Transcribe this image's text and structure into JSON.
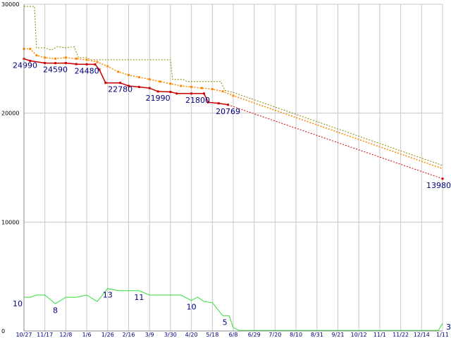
{
  "chart_data": {
    "type": "line",
    "ylim": [
      0,
      30000
    ],
    "yticks": [
      {
        "value": 0,
        "label": "0"
      },
      {
        "value": 10000,
        "label": "10000"
      },
      {
        "value": 20000,
        "label": "20000"
      },
      {
        "value": 30000,
        "label": "30000"
      }
    ],
    "grid": true,
    "xticks": [
      "10/27",
      "11/17",
      "12/8",
      "1/6",
      "1/26",
      "2/16",
      "3/9",
      "3/30",
      "4/20",
      "5/18",
      "6/8",
      "6/29",
      "7/20",
      "8/10",
      "8/31",
      "9/21",
      "10/12",
      "11/1",
      "11/22",
      "12/14",
      "1/11"
    ],
    "colors": {
      "price": "#cc0000",
      "avg": "#ff8800",
      "high": "#888800",
      "count": "#33dd33",
      "label": "#000080",
      "grid": "#c8c8c8"
    },
    "series": [
      {
        "key": "high",
        "style": "step-dotted",
        "points": [
          [
            0,
            29800
          ],
          [
            0.5,
            29800
          ],
          [
            0.6,
            26000
          ],
          [
            1,
            26000
          ],
          [
            1.3,
            25800
          ],
          [
            1.6,
            26100
          ],
          [
            2,
            26000
          ],
          [
            2.4,
            26100
          ],
          [
            2.6,
            25100
          ],
          [
            3,
            25100
          ],
          [
            3.2,
            24900
          ],
          [
            4,
            24900
          ],
          [
            5,
            24900
          ],
          [
            6,
            24900
          ],
          [
            7,
            24900
          ],
          [
            7.1,
            23100
          ],
          [
            7.6,
            23100
          ],
          [
            7.8,
            22900
          ],
          [
            8.5,
            22900
          ],
          [
            9.4,
            22900
          ],
          [
            9.6,
            22100
          ],
          [
            10,
            21900
          ],
          [
            20,
            15200
          ]
        ]
      },
      {
        "key": "avg",
        "style": "dotted-markers",
        "points": [
          [
            0,
            25900
          ],
          [
            0.3,
            25900
          ],
          [
            0.6,
            25300
          ],
          [
            1,
            25100
          ],
          [
            1.5,
            25000
          ],
          [
            2,
            25100
          ],
          [
            2.5,
            25000
          ],
          [
            3,
            24900
          ],
          [
            3.5,
            24700
          ],
          [
            4,
            24300
          ],
          [
            4.5,
            23800
          ],
          [
            5,
            23500
          ],
          [
            5.5,
            23300
          ],
          [
            6,
            23100
          ],
          [
            6.5,
            22900
          ],
          [
            7,
            22700
          ],
          [
            7.5,
            22500
          ],
          [
            8,
            22400
          ],
          [
            8.5,
            22300
          ],
          [
            9,
            22200
          ],
          [
            9.5,
            22000
          ],
          [
            10,
            21600
          ],
          [
            20,
            14900
          ]
        ],
        "marker_until": 10
      },
      {
        "key": "price",
        "style": "solid-then-dotted",
        "solid_until": 9.75,
        "points": [
          [
            0,
            24990
          ],
          [
            0.3,
            24800
          ],
          [
            1,
            24600
          ],
          [
            1.5,
            24590
          ],
          [
            2,
            24600
          ],
          [
            2.5,
            24500
          ],
          [
            3,
            24480
          ],
          [
            3.4,
            24480
          ],
          [
            3.6,
            24000
          ],
          [
            3.9,
            22780
          ],
          [
            4.6,
            22780
          ],
          [
            5,
            22500
          ],
          [
            5.5,
            22400
          ],
          [
            6,
            22300
          ],
          [
            6.4,
            21990
          ],
          [
            7,
            21950
          ],
          [
            7.3,
            21800
          ],
          [
            8,
            21800
          ],
          [
            8.6,
            21800
          ],
          [
            8.8,
            21000
          ],
          [
            9.3,
            20900
          ],
          [
            9.75,
            20769
          ],
          [
            20,
            13980
          ]
        ]
      },
      {
        "key": "count",
        "style": "solid",
        "points": [
          [
            0,
            3100
          ],
          [
            0.3,
            3100
          ],
          [
            0.6,
            3300
          ],
          [
            1,
            3300
          ],
          [
            1.5,
            2500
          ],
          [
            2,
            3100
          ],
          [
            2.5,
            3100
          ],
          [
            3,
            3300
          ],
          [
            3.5,
            2700
          ],
          [
            4,
            3900
          ],
          [
            4.5,
            3700
          ],
          [
            5,
            3700
          ],
          [
            5.5,
            3700
          ],
          [
            6,
            3300
          ],
          [
            6.5,
            3300
          ],
          [
            7,
            3300
          ],
          [
            7.5,
            3300
          ],
          [
            8,
            2800
          ],
          [
            8.3,
            3100
          ],
          [
            8.6,
            2700
          ],
          [
            9,
            2600
          ],
          [
            9.5,
            1400
          ],
          [
            9.8,
            1400
          ],
          [
            10,
            300
          ],
          [
            10.3,
            50
          ],
          [
            19.8,
            50
          ],
          [
            20,
            700
          ]
        ]
      }
    ],
    "data_labels": [
      {
        "text": "24990",
        "x": 0,
        "y": 24990
      },
      {
        "text": "24590",
        "x": 1.5,
        "y": 24590
      },
      {
        "text": "24480",
        "x": 3,
        "y": 24480
      },
      {
        "text": "22780",
        "x": 4.6,
        "y": 22780
      },
      {
        "text": "21990",
        "x": 6.4,
        "y": 21990
      },
      {
        "text": "21800",
        "x": 8.3,
        "y": 21800
      },
      {
        "text": "20769",
        "x": 9.75,
        "y": 20769
      },
      {
        "text": "13980",
        "x": 20,
        "y": 13980
      },
      {
        "text": "10",
        "x": 0,
        "y": 3100
      },
      {
        "text": "8",
        "x": 1.5,
        "y": 2500
      },
      {
        "text": "13",
        "x": 4,
        "y": 3900
      },
      {
        "text": "11",
        "x": 5.5,
        "y": 3700
      },
      {
        "text": "10",
        "x": 8,
        "y": 2800
      },
      {
        "text": "5",
        "x": 9.6,
        "y": 1400
      },
      {
        "text": "3",
        "x": 20,
        "y": 700
      }
    ]
  }
}
